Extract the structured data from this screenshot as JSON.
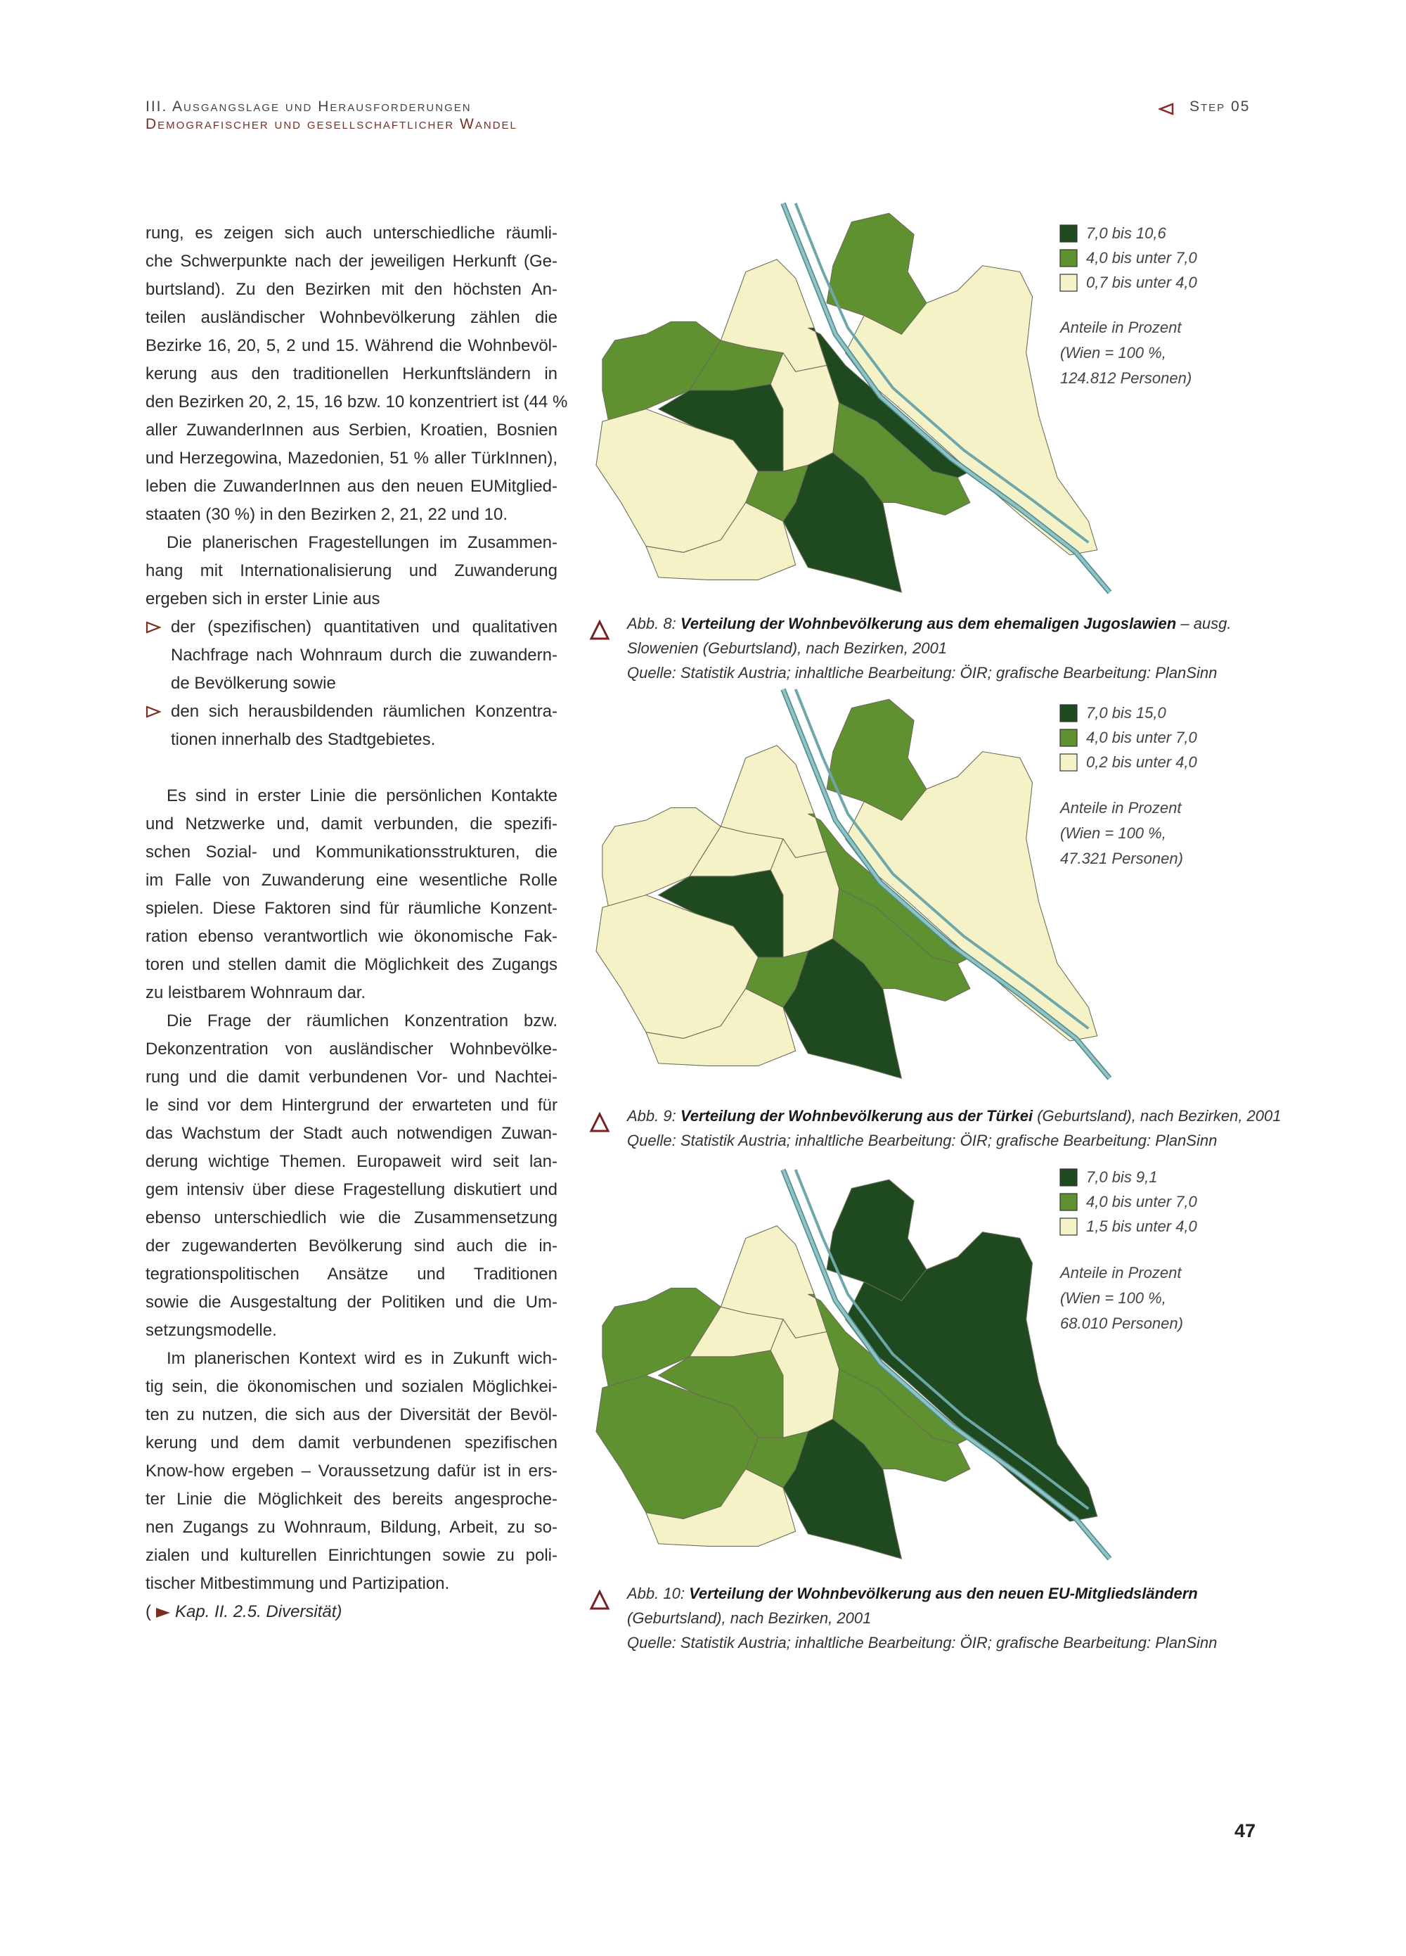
{
  "header": {
    "title": "III. Ausgangslage und Herausforderungen",
    "subtitle": "Demografischer und gesellschaftlicher Wandel",
    "step": "Step 05"
  },
  "body": [
    {
      "lines": [
        "rung, es zeigen sich auch unterschiedliche räumli-",
        "che Schwerpunkte nach der jeweiligen Herkunft (Ge-",
        "burtsland). Zu den Bezirken mit den höchsten An-",
        "teilen ausländischer Wohnbevölkerung zählen die",
        "Bezirke 16, 20, 5, 2 und 15. Während die Wohnbevöl-",
        "kerung aus den traditionellen Herkunftsländern in",
        "den Bezirken 20, 2, 15, 16 bzw. 10 konzentriert ist (44 %",
        "aller ZuwanderInnen aus Serbien, Kroatien, Bosnien",
        "und Herzegowina, Mazedonien, 51 % aller TürkInnen),",
        "leben die ZuwanderInnen aus den neuen EUMitglied-",
        "staaten (30 %) in den Bezirken 2, 21, 22 und 10."
      ]
    },
    {
      "lines": [
        "Die planerischen Fragestellungen im Zusammen-",
        "hang mit Internationalisierung und Zuwanderung",
        "ergeben sich in erster Linie aus"
      ]
    },
    {
      "lines": [
        "der (spezifischen) quantitativen und qualitativen",
        "Nachfrage nach Wohnraum durch die zuwandern-",
        "de Bevölkerung sowie"
      ]
    },
    {
      "lines": [
        "den sich herausbildenden räumlichen Konzentra-",
        "tionen innerhalb des Stadtgebietes."
      ]
    },
    {
      "lines": [
        "Es sind in erster Linie die persönlichen Kontakte",
        "und Netzwerke und, damit verbunden, die spezifi-",
        "schen Sozial- und Kommunikationsstrukturen, die",
        "im Falle von Zuwanderung eine wesentliche Rolle",
        "spielen. Diese Faktoren sind für räumliche Konzent-",
        "ration ebenso verantwortlich wie ökonomische Fak-",
        "toren und stellen damit die Möglichkeit des Zugangs",
        "zu leistbarem Wohnraum dar."
      ]
    },
    {
      "lines": [
        "Die Frage der räumlichen Konzentration bzw.",
        "Dekonzentration von ausländischer Wohnbevölke-",
        "rung und die damit verbundenen Vor- und Nachtei-",
        "le sind vor dem Hintergrund der erwarteten und für",
        "das Wachstum der Stadt auch notwendigen Zuwan-",
        "derung wichtige Themen. Europaweit wird seit lan-",
        "gem intensiv über diese Fragestellung diskutiert und",
        "ebenso unterschiedlich wie die Zusammensetzung",
        "der zugewanderten Bevölkerung sind auch die in-",
        "tegrationspolitischen Ansätze und Traditionen",
        "sowie die Ausgestaltung der Politiken und die Um-",
        "setzungsmodelle."
      ]
    },
    {
      "lines": [
        "Im planerischen Kontext wird es in Zukunft wich-",
        "tig sein, die ökonomischen und sozialen Möglichkei-",
        "ten zu nutzen, die sich aus der Diversität der Bevöl-",
        "kerung und dem damit verbundenen spezifischen",
        "Know-how ergeben – Voraussetzung dafür ist in ers-",
        "ter Linie die Möglichkeit des bereits angesproche-",
        "nen Zugangs zu Wohnraum, Bildung, Arbeit, zu so-",
        "zialen und kulturellen Einrichtungen sowie zu poli-",
        "tischer Mitbestimmung und Partizipation."
      ]
    }
  ],
  "reference": {
    "open": "(",
    "text": "Kap. II. 2.5. Diversität)"
  },
  "figures": [
    {
      "legend": [
        {
          "label": "7,0 bis 10,6",
          "color": "#1f4a20"
        },
        {
          "label": "4,0 bis unter 7,0",
          "color": "#5f9130"
        },
        {
          "label": "0,7 bis unter 4,0",
          "color": "#f4f2c6"
        }
      ],
      "note": [
        "Anteile in Prozent",
        "(Wien = 100 %,",
        "124.812 Personen)"
      ],
      "caption": {
        "label": "Abb. 8:",
        "title": "Verteilung der Wohnbevölkerung aus dem ehemaligen Jugoslawien",
        "title_rest": "– ausg.",
        "lines": [
          "Slowenien (Geburtsland), nach Bezirken, 2001",
          "Quelle: Statistik Austria; inhaltliche Bearbeitung: ÖIR; grafische Bearbeitung: PlanSinn"
        ]
      }
    },
    {
      "legend": [
        {
          "label": "7,0 bis 15,0",
          "color": "#1f4a20"
        },
        {
          "label": "4,0 bis unter 7,0",
          "color": "#5f9130"
        },
        {
          "label": "0,2 bis unter 4,0",
          "color": "#f4f2c6"
        }
      ],
      "note": [
        "Anteile in Prozent",
        "(Wien = 100 %,",
        "47.321 Personen)"
      ],
      "caption": {
        "label": "Abb. 9:",
        "title": "Verteilung der Wohnbevölkerung aus der Türkei",
        "title_rest": "(Geburtsland), nach Bezirken, 2001",
        "lines": [
          "Quelle: Statistik Austria; inhaltliche Bearbeitung: ÖIR; grafische Bearbeitung: PlanSinn"
        ]
      }
    },
    {
      "legend": [
        {
          "label": "7,0 bis 9,1",
          "color": "#1f4a20"
        },
        {
          "label": "4,0 bis unter 7,0",
          "color": "#5f9130"
        },
        {
          "label": "1,5 bis unter 4,0",
          "color": "#f4f2c6"
        }
      ],
      "note": [
        "Anteile in Prozent",
        "(Wien = 100 %,",
        "68.010 Personen)"
      ],
      "caption": {
        "label": "Abb. 10:",
        "title": "Verteilung der Wohnbevölkerung aus den neuen EU-Mitgliedsländern",
        "lines": [
          "(Geburtsland), nach Bezirken, 2001",
          "Quelle: Statistik Austria; inhaltliche Bearbeitung: ÖIR; grafische Bearbeitung: PlanSinn"
        ]
      }
    }
  ],
  "page_number": "47"
}
